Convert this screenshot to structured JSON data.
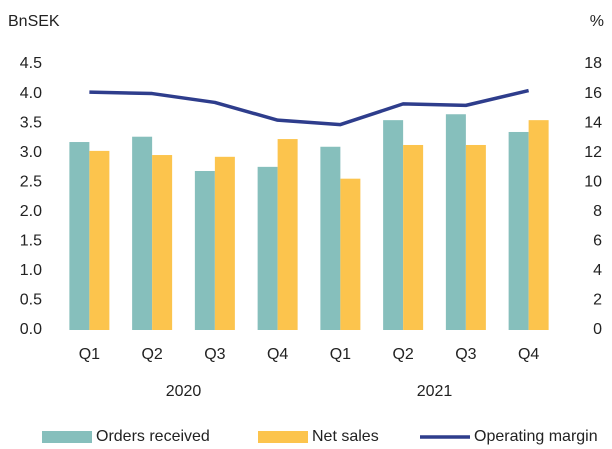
{
  "chart_data": {
    "type": "bar_line",
    "y_unit_label": "BnSEK",
    "y2_unit_label": "%",
    "categories": [
      "Q1",
      "Q2",
      "Q3",
      "Q4",
      "Q1",
      "Q2",
      "Q3",
      "Q4"
    ],
    "group_labels": [
      "2020",
      "2021"
    ],
    "series": [
      {
        "name": "Orders received",
        "type": "bar",
        "color": "#86bfbc",
        "values": [
          3.18,
          3.27,
          2.69,
          2.76,
          3.1,
          3.55,
          3.65,
          3.35
        ]
      },
      {
        "name": "Net sales",
        "type": "bar",
        "color": "#fcc44d",
        "values": [
          3.03,
          2.96,
          2.93,
          3.23,
          2.56,
          3.13,
          3.13,
          3.55
        ]
      },
      {
        "name": "Operating margin",
        "type": "line",
        "axis": "y2",
        "color": "#2e3d8c",
        "values": [
          16.1,
          16.0,
          15.4,
          14.2,
          13.9,
          15.3,
          15.2,
          16.2
        ]
      }
    ],
    "ylim": [
      0,
      4.5
    ],
    "yticks": [
      {
        "value": 0,
        "label": "0.0"
      },
      0.5,
      {
        "value": 1,
        "label": "1.0"
      },
      1.5,
      {
        "value": 2,
        "label": "2.0"
      },
      2.5,
      {
        "value": 3,
        "label": "3.0"
      },
      3.5,
      {
        "value": 4,
        "label": "4.0"
      },
      4.5
    ],
    "y2lim": [
      0,
      18
    ],
    "y2ticks": [
      0,
      2,
      4,
      6,
      8,
      10,
      12,
      14,
      16,
      18
    ],
    "grid": false,
    "legend": "bottom"
  }
}
